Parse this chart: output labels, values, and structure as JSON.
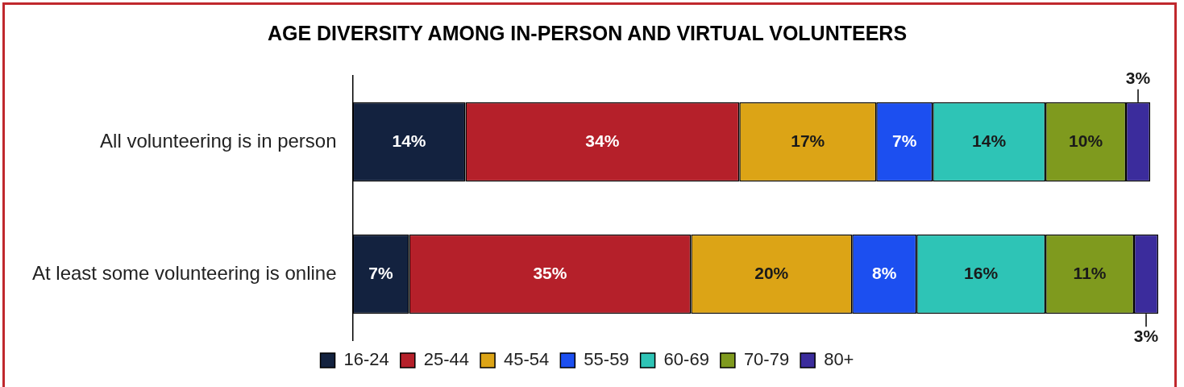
{
  "chart_data": {
    "type": "bar",
    "orientation": "horizontal",
    "stacked": true,
    "title": "AGE DIVERSITY AMONG IN-PERSON AND VIRTUAL VOLUNTEERS",
    "categories": [
      "All volunteering is in person",
      "At least some volunteering is online"
    ],
    "series": [
      {
        "name": "16-24",
        "color": "#13223f",
        "values": [
          14,
          7
        ],
        "value_labels": [
          "14%",
          "7%"
        ]
      },
      {
        "name": "25-44",
        "color": "#b5202a",
        "values": [
          34,
          35
        ],
        "value_labels": [
          "34%",
          "35%"
        ]
      },
      {
        "name": "45-54",
        "color": "#dca416",
        "values": [
          17,
          20
        ],
        "value_labels": [
          "17%",
          "20%"
        ]
      },
      {
        "name": "55-59",
        "color": "#1c4ff0",
        "values": [
          7,
          8
        ],
        "value_labels": [
          "7%",
          "8%"
        ]
      },
      {
        "name": "60-69",
        "color": "#2ec4b6",
        "values": [
          14,
          16
        ],
        "value_labels": [
          "14%",
          "16%"
        ]
      },
      {
        "name": "70-79",
        "color": "#7f9a1e",
        "values": [
          10,
          11
        ],
        "value_labels": [
          "10%",
          "11%"
        ]
      },
      {
        "name": "80+",
        "color": "#3b2c9c",
        "values": [
          3,
          3
        ],
        "value_labels": [
          "3%",
          "3%"
        ]
      }
    ],
    "tick_labels": "y",
    "legend": "bottom"
  }
}
